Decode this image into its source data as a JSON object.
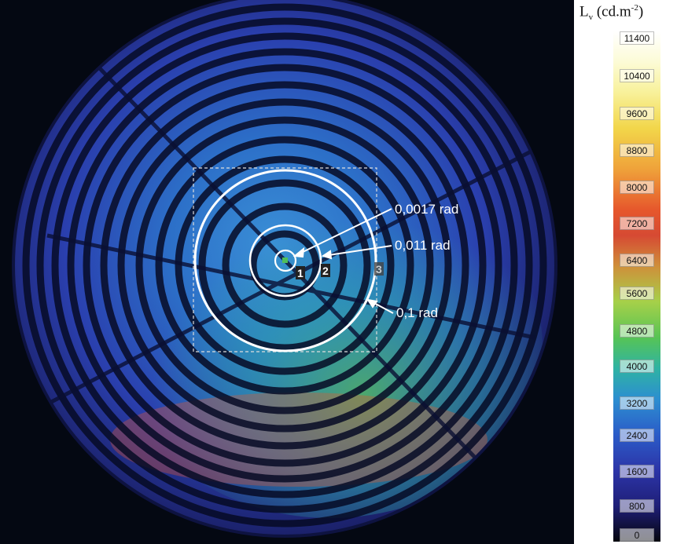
{
  "colorbar": {
    "quantity": "L",
    "subscript": "v",
    "unit": "(cd.m",
    "exponent": "-2",
    "unit_close": ")",
    "ticks": [
      "11400",
      "10400",
      "9600",
      "8800",
      "8000",
      "7200",
      "6400",
      "5600",
      "4800",
      "4000",
      "3200",
      "2400",
      "1600",
      "800",
      "0"
    ]
  },
  "annotations": {
    "small": "0,0017 rad",
    "medium": "0,011 rad",
    "large": "0,1 rad",
    "marker1": "1",
    "marker2": "2",
    "marker3": "3"
  },
  "colors": {
    "background": "#040812",
    "low": "#2a2fa8",
    "mid": "#2b8fd0",
    "green": "#57c455",
    "hot": "#e6572c",
    "annotation": "#ffffff"
  }
}
